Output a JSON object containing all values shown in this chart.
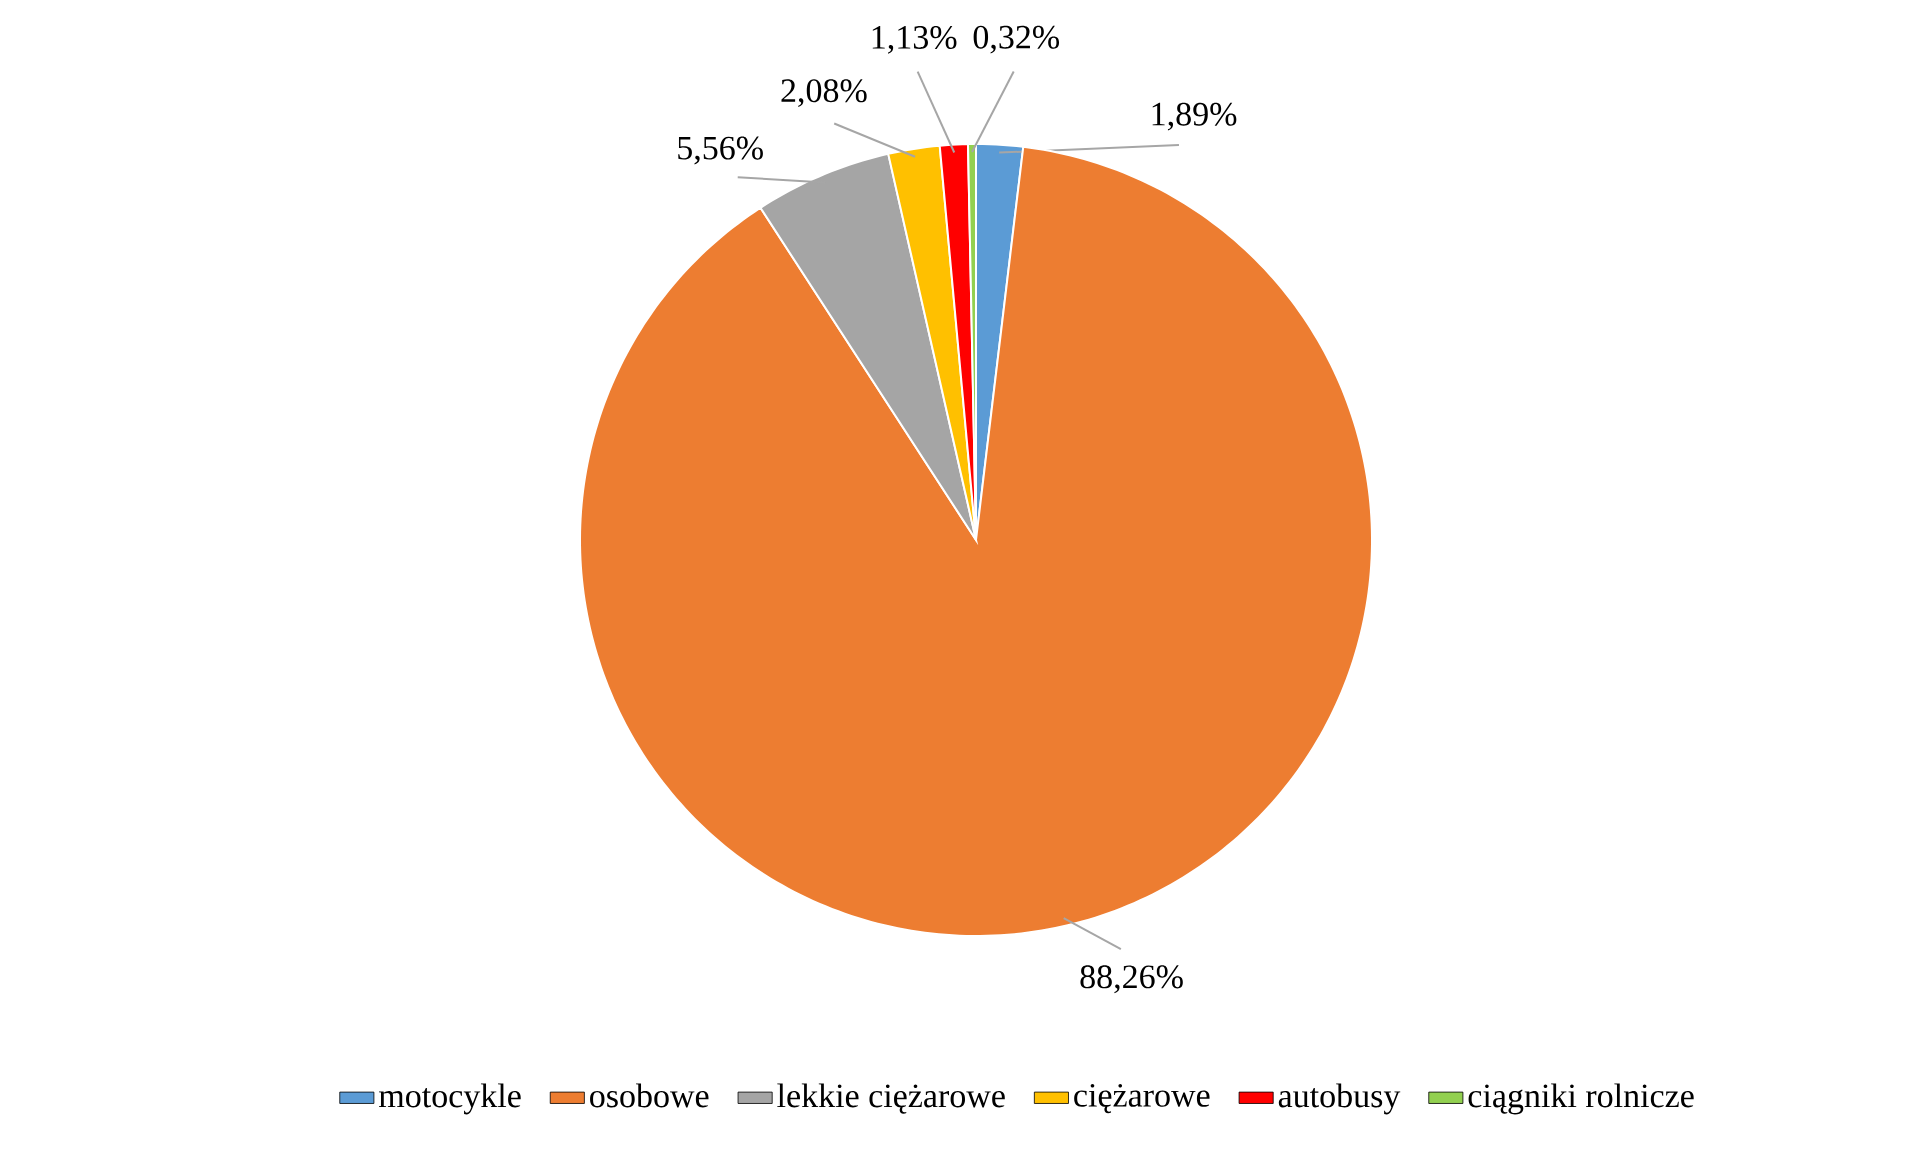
{
  "chart_data": {
    "type": "pie",
    "categories": [
      "motocykle",
      "osobowe",
      "lekkie ciężarowe",
      "ciężarowe",
      "autobusy",
      "ciągniki rolnicze"
    ],
    "values": [
      1.89,
      88.26,
      5.56,
      2.08,
      1.13,
      0.32
    ],
    "colors": [
      "#5b9bd5",
      "#ed7d31",
      "#a5a5a5",
      "#ffc000",
      "#ff0000",
      "#92d050"
    ],
    "value_labels": [
      "1,89%",
      "88,26%",
      "5,56%",
      "2,08%",
      "1,13%",
      "0,32%"
    ],
    "legend": "bottom"
  }
}
